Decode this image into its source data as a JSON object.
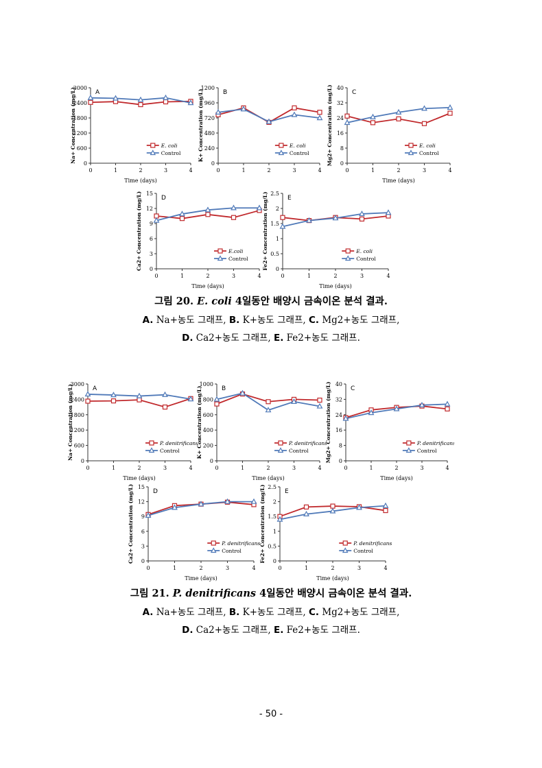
{
  "colors": {
    "ecoli": "#c0282b",
    "control": "#4f79b8",
    "axis": "#333333"
  },
  "figure20": {
    "title_prefix": "그림 20.",
    "title_organism": "E. coli",
    "title_suffix": "4일동안 배양시 금속이온 분석 결과.",
    "line1": [
      {
        "key": "A.",
        "text": " Na+농도 그래프, "
      },
      {
        "key": "B.",
        "text": " K+농도 그래프, "
      },
      {
        "key": "C.",
        "text": " Mg2+농도 그래프,"
      }
    ],
    "line2": [
      {
        "key": "D.",
        "text": " Ca2+농도 그래프, "
      },
      {
        "key": "E.",
        "text": " Fe2+농도 그래프."
      }
    ]
  },
  "figure21": {
    "title_prefix": "그림 21.",
    "title_organism": "P. denitrificans",
    "title_suffix": "4일동안 배양시 금속이온 분석 결과.",
    "line1": [
      {
        "key": "A.",
        "text": " Na+농도 그래프, "
      },
      {
        "key": "B.",
        "text": " K+농도 그래프, "
      },
      {
        "key": "C.",
        "text": " Mg2+농도 그래프,"
      }
    ],
    "line2": [
      {
        "key": "D.",
        "text": " Ca2+농도 그래프, "
      },
      {
        "key": "E.",
        "text": " Fe2+농도 그래프."
      }
    ]
  },
  "page_number": "- 50 -",
  "chart_data": [
    {
      "id": "f20a",
      "figure": "20",
      "panel": "A",
      "type": "line",
      "ylabel": "Na+ Concentration (mg/L)",
      "xlabel": "Time (days)",
      "x": [
        0,
        1,
        2,
        3,
        4
      ],
      "ylim": [
        0,
        3000
      ],
      "yticks": [
        0,
        600,
        1200,
        1800,
        2400,
        3000
      ],
      "legend": "bottom-right",
      "series": [
        {
          "name": "E. coli",
          "marker": "square",
          "values": [
            2420,
            2450,
            2330,
            2440,
            2460
          ]
        },
        {
          "name": "Control",
          "marker": "triangle",
          "values": [
            2600,
            2580,
            2520,
            2600,
            2400
          ]
        }
      ]
    },
    {
      "id": "f20b",
      "figure": "20",
      "panel": "B",
      "type": "line",
      "ylabel": "K+ Concentration (mg/L)",
      "xlabel": "",
      "x": [
        0,
        1,
        2,
        3,
        4
      ],
      "ylim": [
        0,
        1200
      ],
      "yticks": [
        0,
        240,
        480,
        720,
        960,
        1200
      ],
      "legend": "bottom-right",
      "series": [
        {
          "name": "E. coli",
          "marker": "square",
          "values": [
            770,
            880,
            650,
            880,
            810
          ]
        },
        {
          "name": "Control",
          "marker": "triangle",
          "values": [
            810,
            860,
            660,
            770,
            720
          ]
        }
      ]
    },
    {
      "id": "f20c",
      "figure": "20",
      "panel": "C",
      "type": "line",
      "ylabel": "Mg2+ Concentration (mg/L)",
      "xlabel": "Time (days)",
      "x": [
        0,
        1,
        2,
        3,
        4
      ],
      "ylim": [
        0,
        40
      ],
      "yticks": [
        0,
        8,
        16,
        24,
        32,
        40
      ],
      "legend": "bottom-right",
      "series": [
        {
          "name": "E. coli",
          "marker": "square",
          "values": [
            25,
            21.5,
            23.5,
            21,
            26.5
          ]
        },
        {
          "name": "Control",
          "marker": "triangle",
          "values": [
            21.5,
            24.5,
            27,
            29,
            29.5
          ]
        }
      ]
    },
    {
      "id": "f20d",
      "figure": "20",
      "panel": "D",
      "type": "line",
      "ylabel": "Ca2+ Concentration (mg/L)",
      "xlabel": "Time (days)",
      "x": [
        0,
        1,
        2,
        3,
        4
      ],
      "ylim": [
        0,
        15
      ],
      "yticks": [
        0,
        3,
        6,
        9,
        12,
        15
      ],
      "legend": "bottom-right",
      "series": [
        {
          "name": "E.coli",
          "marker": "square",
          "values": [
            10.5,
            10,
            10.8,
            10.2,
            11.6
          ]
        },
        {
          "name": "Control",
          "marker": "triangle",
          "values": [
            9.6,
            10.9,
            11.7,
            12.1,
            12.1
          ]
        }
      ]
    },
    {
      "id": "f20e",
      "figure": "20",
      "panel": "E",
      "type": "line",
      "ylabel": "Fe2+ Concentration (mg/L)",
      "xlabel": "Time (days)",
      "x": [
        0,
        1,
        2,
        3,
        4
      ],
      "ylim": [
        0,
        2.5
      ],
      "yticks": [
        0,
        0.5,
        1,
        1.5,
        2,
        2.5
      ],
      "legend": "bottom-right",
      "series": [
        {
          "name": "E. coli",
          "marker": "square",
          "values": [
            1.7,
            1.6,
            1.7,
            1.65,
            1.75
          ]
        },
        {
          "name": "Control",
          "marker": "triangle",
          "values": [
            1.4,
            1.6,
            1.68,
            1.82,
            1.86
          ]
        }
      ]
    },
    {
      "id": "f21a",
      "figure": "21",
      "panel": "A",
      "type": "line",
      "ylabel": "Na+ Concentration (mg/L)",
      "xlabel": "Time (days)",
      "x": [
        0,
        1,
        2,
        3,
        4
      ],
      "ylim": [
        0,
        3000
      ],
      "yticks": [
        0,
        600,
        1200,
        1800,
        2400,
        3000
      ],
      "legend": "bottom-right",
      "series": [
        {
          "name": "P. denitrificans",
          "marker": "square",
          "values": [
            2330,
            2340,
            2380,
            2100,
            2430
          ]
        },
        {
          "name": "Control",
          "marker": "triangle",
          "values": [
            2600,
            2570,
            2530,
            2580,
            2410
          ]
        }
      ]
    },
    {
      "id": "f21b",
      "figure": "21",
      "panel": "B",
      "type": "line",
      "ylabel": "K+ Concentration (mg/L)",
      "xlabel": "Time (days)",
      "x": [
        0,
        1,
        2,
        3,
        4
      ],
      "ylim": [
        0,
        1000
      ],
      "yticks": [
        0,
        200,
        400,
        600,
        800,
        1000
      ],
      "legend": "bottom-right",
      "series": [
        {
          "name": "P. denitrificans",
          "marker": "square",
          "values": [
            740,
            870,
            770,
            800,
            790
          ]
        },
        {
          "name": "Control",
          "marker": "triangle",
          "values": [
            800,
            880,
            660,
            770,
            710
          ]
        }
      ]
    },
    {
      "id": "f21c",
      "figure": "21",
      "panel": "C",
      "type": "line",
      "ylabel": "Mg2+ Concentration (mg/L)",
      "xlabel": "Time (days)",
      "x": [
        0,
        1,
        2,
        3,
        4
      ],
      "ylim": [
        0,
        40
      ],
      "yticks": [
        0,
        8,
        16,
        24,
        32,
        40
      ],
      "legend": "bottom-right",
      "series": [
        {
          "name": "P. denitrificans",
          "marker": "square",
          "values": [
            22.5,
            26.5,
            27.8,
            28.5,
            27
          ]
        },
        {
          "name": "Control",
          "marker": "triangle",
          "values": [
            22,
            25,
            27,
            29,
            29.5
          ]
        }
      ]
    },
    {
      "id": "f21d",
      "figure": "21",
      "panel": "D",
      "type": "line",
      "ylabel": "Ca2+ Concentration (mg/L)",
      "xlabel": "Time (days)",
      "x": [
        0,
        1,
        2,
        3,
        4
      ],
      "ylim": [
        0,
        15
      ],
      "yticks": [
        0,
        3,
        6,
        9,
        12,
        15
      ],
      "legend": "bottom-right",
      "series": [
        {
          "name": "P. denitrificans",
          "marker": "square",
          "values": [
            9.4,
            11.2,
            11.5,
            11.9,
            11.4
          ]
        },
        {
          "name": "Control",
          "marker": "triangle",
          "values": [
            9.2,
            10.8,
            11.5,
            12,
            12
          ]
        }
      ]
    },
    {
      "id": "f21e",
      "figure": "21",
      "panel": "E",
      "type": "line",
      "ylabel": "Fe2+ Concentration (mg/L)",
      "xlabel": "Time (days)",
      "x": [
        0,
        1,
        2,
        3,
        4
      ],
      "ylim": [
        0,
        2.5
      ],
      "yticks": [
        0,
        0.5,
        1,
        1.5,
        2,
        2.5
      ],
      "legend": "bottom-right",
      "series": [
        {
          "name": "P. denitrificans",
          "marker": "square",
          "values": [
            1.5,
            1.82,
            1.85,
            1.83,
            1.7
          ]
        },
        {
          "name": "Control",
          "marker": "triangle",
          "values": [
            1.4,
            1.58,
            1.68,
            1.8,
            1.86
          ]
        }
      ]
    }
  ]
}
